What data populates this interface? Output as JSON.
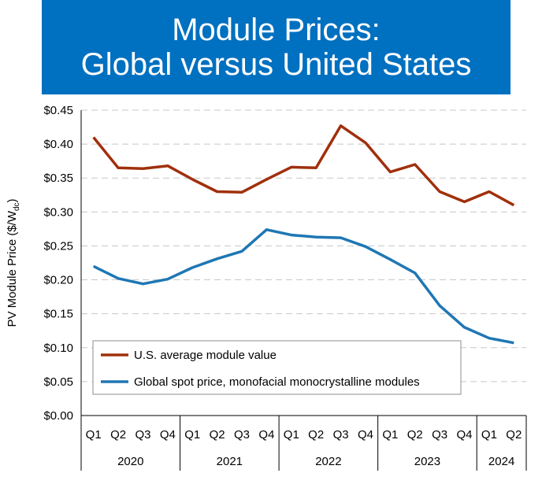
{
  "title_line1": "Module Prices:",
  "title_line2": "Global versus United States",
  "colors": {
    "banner": "#0070c0",
    "us_series": "#a0300c",
    "global_series": "#1f77b4"
  },
  "chart_data": {
    "type": "line",
    "title": "Module Prices: Global versus United States",
    "ylabel": "PV Module Price ($/W",
    "ylabel_sub": "dc",
    "ylabel_close": ")",
    "ylim": [
      0,
      0.45
    ],
    "yticks": [
      "$0.00",
      "$0.05",
      "$0.10",
      "$0.15",
      "$0.20",
      "$0.25",
      "$0.30",
      "$0.35",
      "$0.40",
      "$0.45"
    ],
    "categories": [
      "Q1",
      "Q2",
      "Q3",
      "Q4",
      "Q1",
      "Q2",
      "Q3",
      "Q4",
      "Q1",
      "Q2",
      "Q3",
      "Q4",
      "Q1",
      "Q2",
      "Q3",
      "Q4",
      "Q1",
      "Q2"
    ],
    "groups": [
      {
        "label": "2020",
        "count": 4
      },
      {
        "label": "2021",
        "count": 4
      },
      {
        "label": "2022",
        "count": 4
      },
      {
        "label": "2023",
        "count": 4
      },
      {
        "label": "2024",
        "count": 2
      }
    ],
    "series": [
      {
        "name": "U.S. average module value",
        "color": "#a0300c",
        "values": [
          0.41,
          0.365,
          0.364,
          0.368,
          0.348,
          0.33,
          0.329,
          0.348,
          0.366,
          0.365,
          0.427,
          0.402,
          0.359,
          0.37,
          0.33,
          0.315,
          0.33,
          0.31
        ]
      },
      {
        "name": "Global spot price, monofacial monocrystalline modules",
        "color": "#1f77b4",
        "values": [
          0.22,
          0.202,
          0.194,
          0.201,
          0.218,
          0.231,
          0.242,
          0.274,
          0.266,
          0.263,
          0.262,
          0.249,
          0.23,
          0.21,
          0.162,
          0.13,
          0.114,
          0.107
        ]
      }
    ],
    "grid": true,
    "legend_position": "lower-left"
  }
}
